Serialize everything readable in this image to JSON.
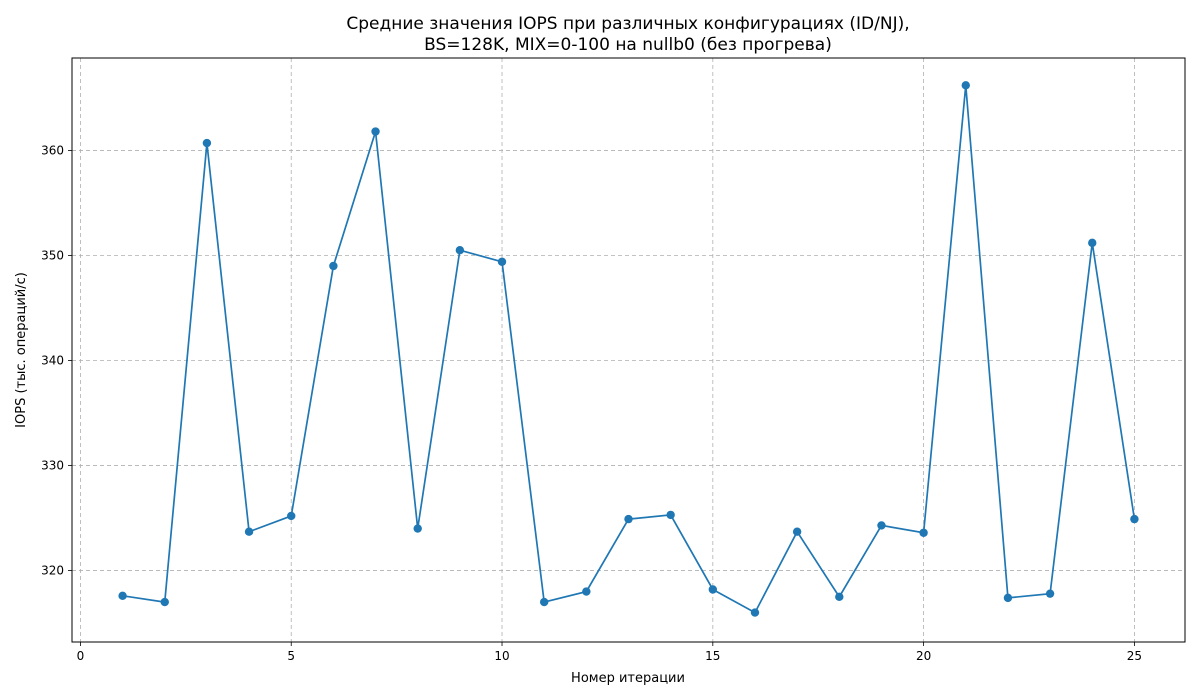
{
  "chart_data": {
    "type": "line",
    "title": "Средние значения IOPS при различных конфигурациях (ID/NJ),\nBS=128K, MIX=0-100 на nullb0 (без прогрева)",
    "title_lines": [
      "Средние значения IOPS при различных конфигурациях (ID/NJ),",
      "BS=128K, MIX=0-100 на nullb0 (без прогрева)"
    ],
    "xlabel": "Номер итерации",
    "ylabel": "IOPS (тыс. операций/с)",
    "xlim": [
      -0.2,
      26.2
    ],
    "ylim": [
      313.2,
      368.8
    ],
    "x_ticks": [
      0,
      5,
      10,
      15,
      20,
      25
    ],
    "y_ticks": [
      320,
      330,
      340,
      350,
      360
    ],
    "grid": true,
    "series": [
      {
        "color": "#1f77b4",
        "x": [
          1,
          2,
          3,
          4,
          5,
          6,
          7,
          8,
          9,
          10,
          11,
          12,
          13,
          14,
          15,
          16,
          17,
          18,
          19,
          20,
          21,
          22,
          23,
          24,
          25
        ],
        "values": [
          317.6,
          317.0,
          360.7,
          323.7,
          325.2,
          349.0,
          361.8,
          324.0,
          350.5,
          349.4,
          317.0,
          318.0,
          324.9,
          325.3,
          318.2,
          316.0,
          323.7,
          317.5,
          324.3,
          323.6,
          366.2,
          317.4,
          317.8,
          351.2,
          324.9
        ]
      }
    ]
  }
}
